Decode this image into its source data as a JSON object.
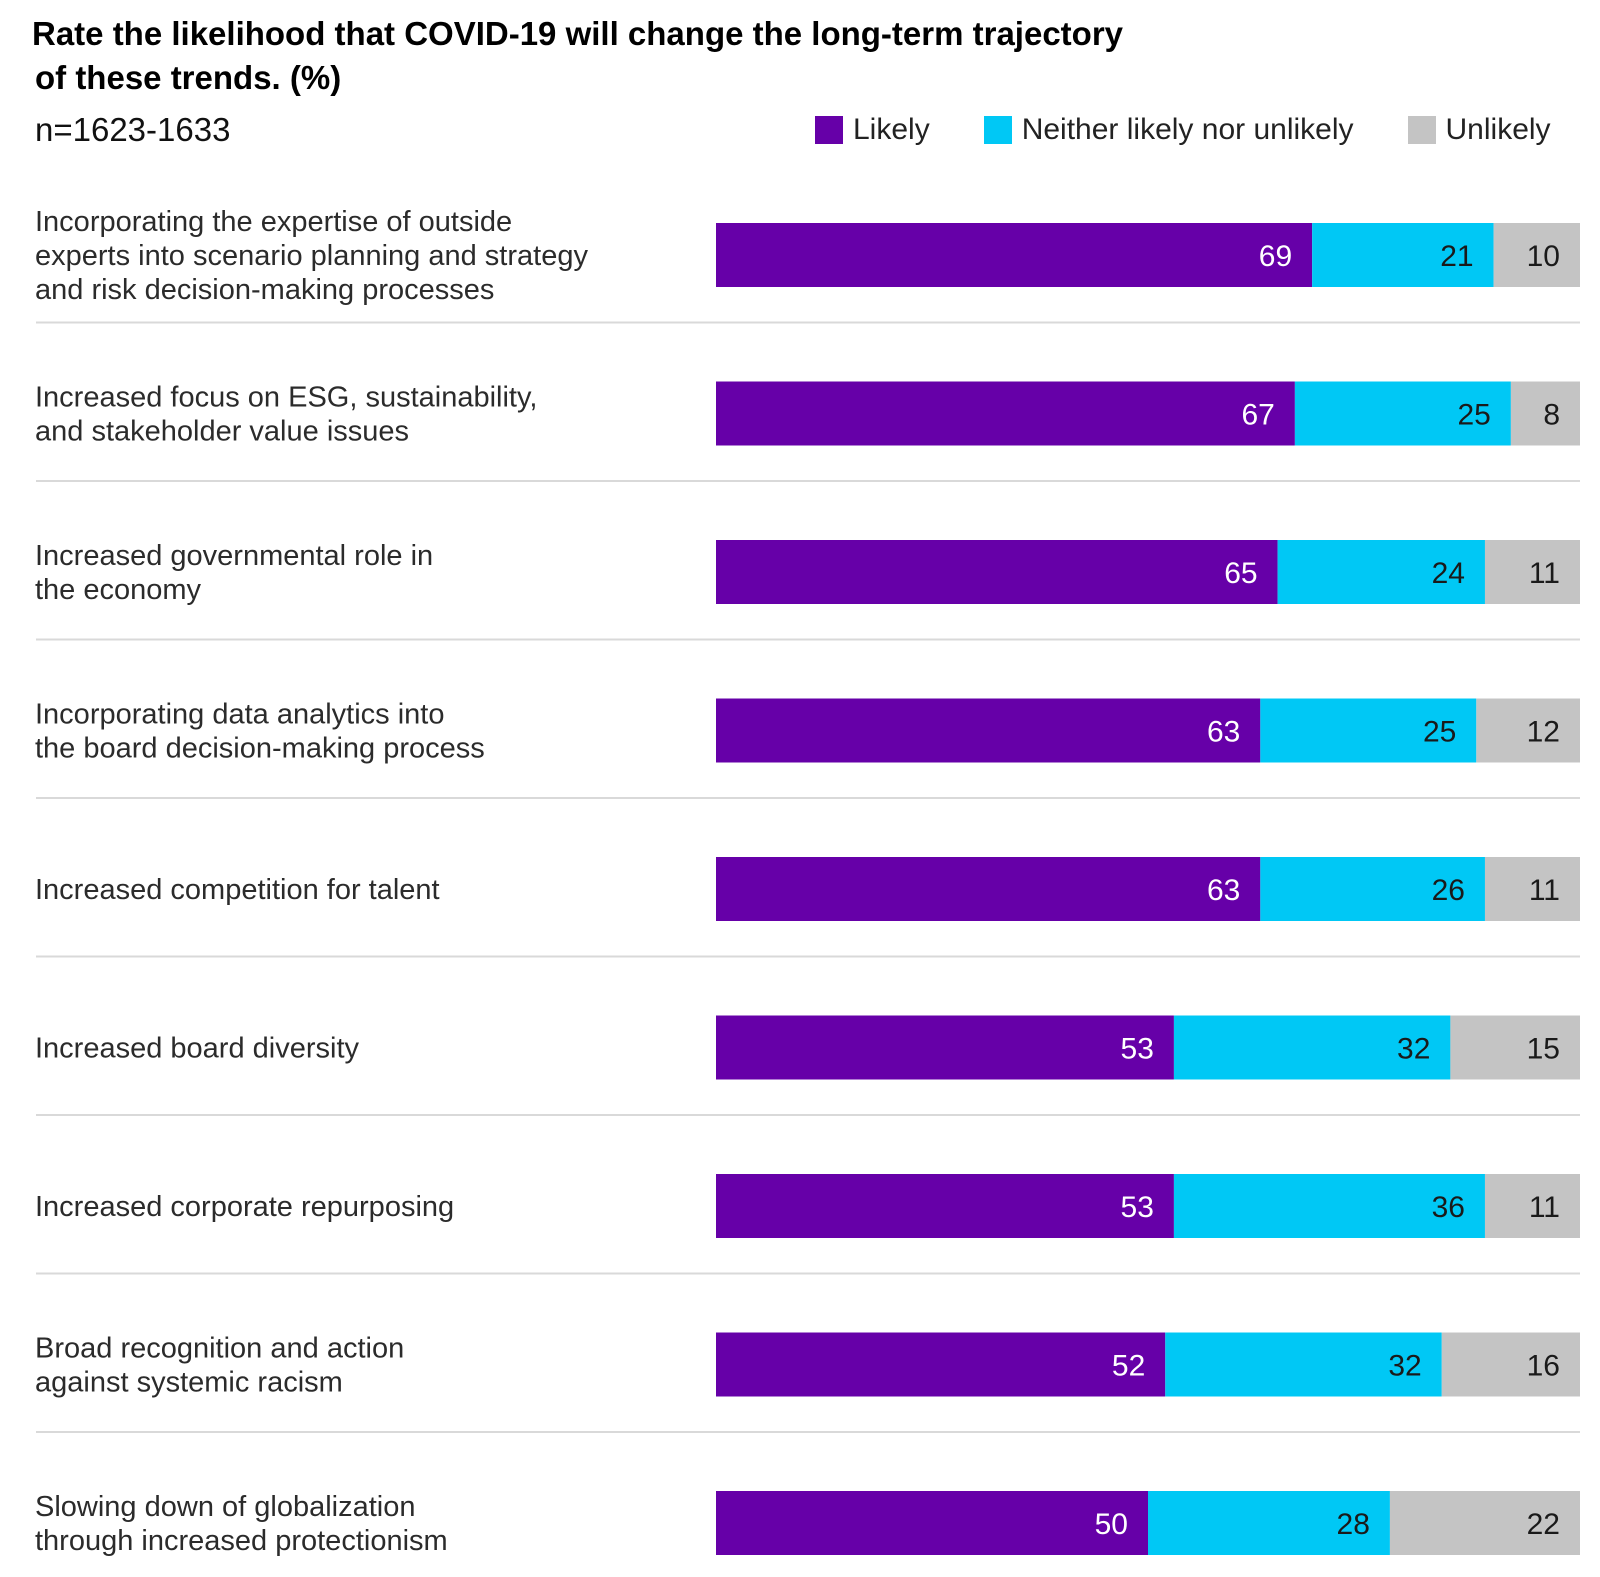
{
  "chart_data": {
    "type": "bar",
    "orientation": "horizontal",
    "stacked": true,
    "title_line1": "Rate the likelihood that COVID-19 will change the long-term trajectory",
    "title_line2": "of these trends. (%)",
    "subtitle": "n=1623-1633",
    "xlim": [
      0,
      100
    ],
    "legend_position": "top-right",
    "categories": [
      [
        "Incorporating the expertise of outside",
        "experts into scenario  planning and strategy",
        "and risk decision-making processes"
      ],
      [
        "Increased focus on ESG, sustainability,",
        "and stakeholder value issues"
      ],
      [
        "Increased governmental role in",
        "the economy"
      ],
      [
        "Incorporating data analytics into",
        "the board decision-making process"
      ],
      [
        "Increased competition for talent"
      ],
      [
        "Increased board diversity"
      ],
      [
        "Increased corporate repurposing"
      ],
      [
        "Broad recognition and action",
        "against systemic racism"
      ],
      [
        "Slowing down of globalization",
        "through increased protectionism"
      ]
    ],
    "series": [
      {
        "name": "Likely",
        "color": "#6600a8",
        "label_color": "#ffffff",
        "values": [
          69,
          67,
          65,
          63,
          63,
          53,
          53,
          52,
          50
        ]
      },
      {
        "name": "Neither likely nor unlikely",
        "color": "#00c8f5",
        "label_color": "#1a1a1a",
        "values": [
          21,
          25,
          24,
          25,
          26,
          32,
          36,
          32,
          28
        ]
      },
      {
        "name": "Unlikely",
        "color": "#c4c4c4",
        "label_color": "#1a1a1a",
        "values": [
          10,
          8,
          11,
          12,
          11,
          15,
          11,
          16,
          22
        ]
      }
    ]
  }
}
